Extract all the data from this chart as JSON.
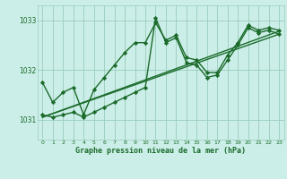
{
  "xlabel": "Graphe pression niveau de la mer (hPa)",
  "bg_color": "#cceee8",
  "grid_color": "#99ccbb",
  "line_color": "#1a6b2a",
  "xlim": [
    -0.5,
    23.5
  ],
  "ylim": [
    1030.6,
    1033.3
  ],
  "yticks": [
    1031,
    1032,
    1033
  ],
  "xticks": [
    0,
    1,
    2,
    3,
    4,
    5,
    6,
    7,
    8,
    9,
    10,
    11,
    12,
    13,
    14,
    15,
    16,
    17,
    18,
    19,
    20,
    21,
    22,
    23
  ],
  "series": [
    {
      "x": [
        0,
        1,
        2,
        3,
        4,
        5,
        6,
        7,
        8,
        9,
        10,
        11,
        12,
        13,
        14,
        15,
        16,
        17,
        18,
        19,
        20,
        21,
        22,
        23
      ],
      "y": [
        1031.75,
        1031.35,
        1031.55,
        1031.65,
        1031.1,
        1031.6,
        1031.85,
        1032.1,
        1032.35,
        1032.55,
        1032.55,
        1032.95,
        1032.6,
        1032.7,
        1032.25,
        1032.2,
        1031.95,
        1031.95,
        1032.3,
        1032.55,
        1032.9,
        1032.8,
        1032.85,
        1032.8
      ],
      "marker": "D",
      "markersize": 2.2,
      "linewidth": 1.0
    },
    {
      "x": [
        0,
        1,
        2,
        3,
        4,
        5,
        6,
        7,
        8,
        9,
        10,
        11,
        12,
        13,
        14,
        15,
        16,
        17,
        18,
        19,
        20,
        21,
        22,
        23
      ],
      "y": [
        1031.1,
        1031.05,
        1031.1,
        1031.15,
        1031.05,
        1031.15,
        1031.25,
        1031.35,
        1031.45,
        1031.55,
        1031.65,
        1033.05,
        1032.55,
        1032.65,
        1032.15,
        1032.1,
        1031.85,
        1031.9,
        1032.2,
        1032.5,
        1032.85,
        1032.75,
        1032.8,
        1032.72
      ],
      "marker": "D",
      "markersize": 2.2,
      "linewidth": 1.0
    },
    {
      "x": [
        0,
        23
      ],
      "y": [
        1031.05,
        1032.72
      ],
      "marker": null,
      "linewidth": 1.0
    },
    {
      "x": [
        0,
        23
      ],
      "y": [
        1031.05,
        1032.78
      ],
      "marker": null,
      "linewidth": 1.0
    }
  ]
}
